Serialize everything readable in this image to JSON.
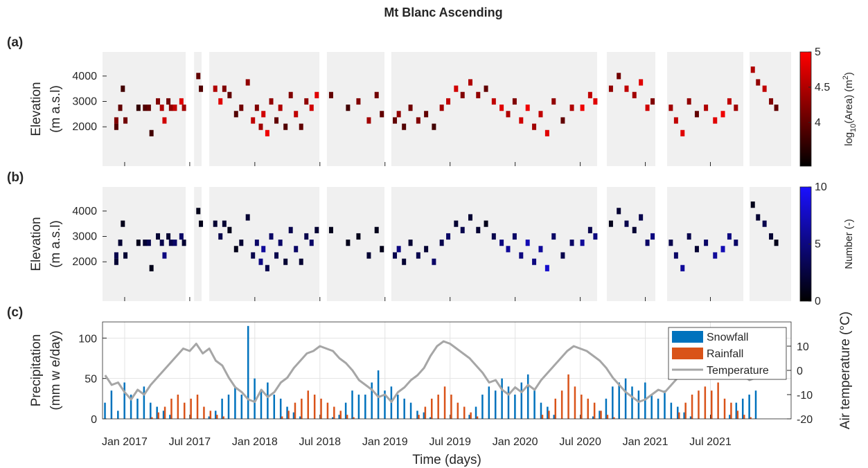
{
  "title": "Mt Blanc Ascending",
  "chart_data": [
    {
      "type": "heatmap",
      "panel_label": "(a)",
      "ylabel": [
        "Elevation",
        "(m a.s.l)"
      ],
      "colorbar_label": {
        "base": "log",
        "sub": "10",
        "mid": "(Area) (m",
        "sup": "2",
        "end": ")"
      },
      "colormap": [
        "#000000",
        "#ff0000"
      ],
      "clim": [
        3.38,
        5
      ],
      "cticks": [
        4,
        4.5,
        5
      ],
      "xlim": [
        2016.83,
        2022.12
      ],
      "ylim": [
        450,
        4950
      ],
      "yticks": [
        2000,
        3000,
        4000
      ],
      "coverage": [
        [
          2016.83,
          2017.469
        ],
        [
          2017.533,
          2017.591
        ],
        [
          2017.65,
          2018.496
        ],
        [
          2018.554,
          2018.996
        ],
        [
          2019.049,
          2020.63
        ],
        [
          2020.704,
          2021.077
        ],
        [
          2021.167,
          2021.753
        ],
        [
          2021.801,
          2022.12
        ]
      ],
      "x": [
        2016.92,
        2016.92,
        2016.95,
        2016.97,
        2016.99,
        2017.09,
        2017.14,
        2017.17,
        2017.19,
        2017.24,
        2017.27,
        2017.29,
        2017.32,
        2017.34,
        2017.37,
        2017.42,
        2017.44,
        2017.55,
        2017.57,
        2017.68,
        2017.72,
        2017.75,
        2017.79,
        2017.84,
        2017.88,
        2017.93,
        2017.97,
        2018.0,
        2018.03,
        2018.05,
        2018.08,
        2018.11,
        2018.15,
        2018.18,
        2018.22,
        2018.26,
        2018.3,
        2018.34,
        2018.38,
        2018.42,
        2018.46,
        2018.57,
        2018.7,
        2018.78,
        2018.86,
        2018.92,
        2018.96,
        2019.06,
        2019.09,
        2019.13,
        2019.18,
        2019.24,
        2019.3,
        2019.36,
        2019.42,
        2019.47,
        2019.53,
        2019.58,
        2019.64,
        2019.7,
        2019.76,
        2019.82,
        2019.88,
        2019.93,
        2019.98,
        2020.03,
        2020.08,
        2020.13,
        2020.18,
        2020.23,
        2020.28,
        2020.35,
        2020.42,
        2020.5,
        2020.56,
        2020.6,
        2020.72,
        2020.78,
        2020.84,
        2020.9,
        2020.95,
        2021.0,
        2021.04,
        2021.18,
        2021.22,
        2021.27,
        2021.32,
        2021.38,
        2021.45,
        2021.52,
        2021.58,
        2021.63,
        2021.68,
        2021.81,
        2021.85,
        2021.9,
        2021.95,
        2021.99
      ],
      "y": [
        2250,
        2000,
        2750,
        3500,
        2250,
        2750,
        2750,
        2750,
        1750,
        3000,
        2750,
        2250,
        3000,
        2750,
        2750,
        3000,
        2750,
        4000,
        3500,
        3500,
        3000,
        3500,
        3250,
        2500,
        2750,
        3750,
        2250,
        2750,
        2000,
        2500,
        1750,
        3000,
        2250,
        2750,
        2000,
        3250,
        2500,
        2000,
        3000,
        2750,
        3250,
        3250,
        2750,
        3000,
        2250,
        3250,
        2500,
        2250,
        2500,
        2000,
        2750,
        2250,
        2500,
        2000,
        2750,
        3000,
        3500,
        3250,
        3750,
        3250,
        3500,
        3000,
        2750,
        2500,
        3000,
        2250,
        2750,
        2000,
        2500,
        1750,
        3000,
        2250,
        2750,
        2750,
        3250,
        3000,
        3500,
        4000,
        3500,
        3250,
        3750,
        2750,
        3000,
        2750,
        2250,
        1750,
        3000,
        2500,
        2750,
        2250,
        2500,
        3000,
        2750,
        4250,
        3750,
        3500,
        3000,
        2750
      ],
      "values": [
        4.2,
        3.9,
        4.0,
        3.8,
        4.1,
        3.7,
        3.9,
        4.0,
        3.8,
        4.2,
        4.5,
        4.7,
        4.1,
        4.3,
        4.6,
        4.8,
        4.4,
        4.0,
        3.9,
        4.5,
        4.8,
        4.2,
        4.0,
        3.9,
        4.1,
        4.3,
        4.6,
        4.2,
        4.4,
        4.7,
        4.9,
        4.3,
        4.0,
        4.5,
        3.9,
        4.2,
        4.6,
        4.0,
        4.3,
        4.7,
        4.8,
        4.0,
        3.8,
        4.2,
        4.4,
        4.1,
        4.0,
        4.0,
        4.3,
        3.9,
        4.1,
        4.2,
        4.0,
        3.8,
        4.4,
        4.6,
        4.7,
        4.2,
        4.5,
        4.3,
        4.0,
        4.6,
        4.8,
        4.5,
        4.2,
        4.7,
        4.9,
        4.4,
        4.6,
        4.8,
        4.3,
        4.0,
        4.5,
        4.9,
        4.6,
        4.8,
        4.3,
        4.1,
        4.6,
        4.4,
        4.8,
        4.7,
        4.2,
        4.4,
        4.6,
        4.8,
        4.3,
        4.0,
        4.5,
        4.8,
        4.9,
        4.6,
        4.4,
        4.5,
        4.3,
        4.6,
        4.2,
        4.0
      ]
    },
    {
      "type": "heatmap",
      "panel_label": "(b)",
      "ylabel": [
        "Elevation",
        "(m a.s.l)"
      ],
      "colorbar_label": {
        "base": "Number (-)"
      },
      "colormap": [
        "#000000",
        "#1a10ff"
      ],
      "clim": [
        0,
        10
      ],
      "cticks": [
        0,
        5,
        10
      ],
      "xlim": [
        2016.83,
        2022.12
      ],
      "ylim": [
        450,
        4950
      ],
      "yticks": [
        2000,
        3000,
        4000
      ],
      "coverage": [
        [
          2016.83,
          2017.469
        ],
        [
          2017.533,
          2017.591
        ],
        [
          2017.65,
          2018.496
        ],
        [
          2018.554,
          2018.996
        ],
        [
          2019.049,
          2020.63
        ],
        [
          2020.704,
          2021.077
        ],
        [
          2021.167,
          2021.753
        ],
        [
          2021.801,
          2022.12
        ]
      ],
      "x": [
        2016.92,
        2016.92,
        2016.95,
        2016.97,
        2016.99,
        2017.09,
        2017.14,
        2017.17,
        2017.19,
        2017.24,
        2017.27,
        2017.29,
        2017.32,
        2017.34,
        2017.37,
        2017.42,
        2017.44,
        2017.55,
        2017.57,
        2017.68,
        2017.72,
        2017.75,
        2017.79,
        2017.84,
        2017.88,
        2017.93,
        2017.97,
        2018.0,
        2018.03,
        2018.05,
        2018.08,
        2018.11,
        2018.15,
        2018.18,
        2018.22,
        2018.26,
        2018.3,
        2018.34,
        2018.38,
        2018.42,
        2018.46,
        2018.57,
        2018.7,
        2018.78,
        2018.86,
        2018.92,
        2018.96,
        2019.06,
        2019.09,
        2019.13,
        2019.18,
        2019.24,
        2019.3,
        2019.36,
        2019.42,
        2019.47,
        2019.53,
        2019.58,
        2019.64,
        2019.7,
        2019.76,
        2019.82,
        2019.88,
        2019.93,
        2019.98,
        2020.03,
        2020.08,
        2020.13,
        2020.18,
        2020.23,
        2020.28,
        2020.35,
        2020.42,
        2020.5,
        2020.56,
        2020.6,
        2020.72,
        2020.78,
        2020.84,
        2020.9,
        2020.95,
        2021.0,
        2021.04,
        2021.18,
        2021.22,
        2021.27,
        2021.32,
        2021.38,
        2021.45,
        2021.52,
        2021.58,
        2021.63,
        2021.68,
        2021.81,
        2021.85,
        2021.9,
        2021.95,
        2021.99
      ],
      "y": [
        2250,
        2000,
        2750,
        3500,
        2250,
        2750,
        2750,
        2750,
        1750,
        3000,
        2750,
        2250,
        3000,
        2750,
        2750,
        3000,
        2750,
        4000,
        3500,
        3500,
        3000,
        3500,
        3250,
        2500,
        2750,
        3750,
        2250,
        2750,
        2000,
        2500,
        1750,
        3000,
        2250,
        2750,
        2000,
        3250,
        2500,
        2000,
        3000,
        2750,
        3250,
        3250,
        2750,
        3000,
        2250,
        3250,
        2500,
        2250,
        2500,
        2000,
        2750,
        2250,
        2500,
        2000,
        2750,
        3000,
        3500,
        3250,
        3750,
        3250,
        3500,
        3000,
        2750,
        2500,
        3000,
        2250,
        2750,
        2000,
        2500,
        1750,
        3000,
        2250,
        2750,
        2750,
        3250,
        3000,
        3500,
        4000,
        3500,
        3250,
        3750,
        2750,
        3000,
        2750,
        2250,
        1750,
        3000,
        2500,
        2750,
        2250,
        2500,
        3000,
        2750,
        4250,
        3750,
        3500,
        3000,
        2750
      ],
      "values": [
        3,
        2,
        2,
        1,
        2,
        1,
        2,
        3,
        1,
        2,
        3,
        5,
        2,
        3,
        4,
        4,
        2,
        1,
        1,
        2,
        3,
        2,
        1,
        1,
        2,
        2,
        3,
        4,
        5,
        6,
        3,
        4,
        3,
        4,
        2,
        3,
        4,
        2,
        3,
        4,
        2,
        1,
        1,
        1,
        2,
        1,
        1,
        3,
        5,
        2,
        2,
        3,
        2,
        4,
        3,
        4,
        2,
        3,
        2,
        2,
        1,
        3,
        5,
        6,
        4,
        5,
        7,
        5,
        6,
        8,
        4,
        3,
        4,
        6,
        3,
        5,
        1,
        2,
        3,
        2,
        3,
        4,
        5,
        3,
        4,
        6,
        3,
        2,
        4,
        6,
        7,
        5,
        4,
        1,
        2,
        3,
        2,
        1
      ]
    },
    {
      "type": "bar",
      "panel_label": "(c)",
      "ylabel": [
        "Precipitation",
        "(mm w e/day)"
      ],
      "y2label": "Air temperature (°C)",
      "xlabel": "Time (days)",
      "xlim": [
        2016.83,
        2022.12
      ],
      "ylim": [
        0,
        120
      ],
      "yticks": [
        0,
        50,
        100
      ],
      "y2lim": [
        -20,
        20
      ],
      "y2ticks": [
        -20,
        -10,
        0,
        10
      ],
      "xticks": [
        {
          "value": 2017.0,
          "label": "Jan 2017"
        },
        {
          "value": 2017.5,
          "label": "Jul 2017"
        },
        {
          "value": 2018.0,
          "label": "Jan 2018"
        },
        {
          "value": 2018.5,
          "label": "Jul 2018"
        },
        {
          "value": 2019.0,
          "label": "Jan 2019"
        },
        {
          "value": 2019.5,
          "label": "Jul 2019"
        },
        {
          "value": 2020.0,
          "label": "Jan 2020"
        },
        {
          "value": 2020.5,
          "label": "Jul 2020"
        },
        {
          "value": 2021.0,
          "label": "Jan 2021"
        },
        {
          "value": 2021.5,
          "label": "Jul 2021"
        }
      ],
      "grid": true,
      "legend": "upper right",
      "x": [
        2016.85,
        2016.9,
        2016.95,
        2017.0,
        2017.05,
        2017.1,
        2017.15,
        2017.2,
        2017.25,
        2017.3,
        2017.35,
        2017.4,
        2017.45,
        2017.5,
        2017.55,
        2017.6,
        2017.65,
        2017.7,
        2017.75,
        2017.8,
        2017.85,
        2017.9,
        2017.95,
        2018.0,
        2018.05,
        2018.1,
        2018.15,
        2018.2,
        2018.25,
        2018.3,
        2018.35,
        2018.4,
        2018.45,
        2018.5,
        2018.55,
        2018.6,
        2018.65,
        2018.7,
        2018.75,
        2018.8,
        2018.85,
        2018.9,
        2018.95,
        2019.0,
        2019.05,
        2019.1,
        2019.15,
        2019.2,
        2019.25,
        2019.3,
        2019.35,
        2019.4,
        2019.45,
        2019.5,
        2019.55,
        2019.6,
        2019.65,
        2019.7,
        2019.75,
        2019.8,
        2019.85,
        2019.9,
        2019.95,
        2020.0,
        2020.05,
        2020.1,
        2020.15,
        2020.2,
        2020.25,
        2020.3,
        2020.35,
        2020.4,
        2020.45,
        2020.5,
        2020.55,
        2020.6,
        2020.65,
        2020.7,
        2020.75,
        2020.8,
        2020.85,
        2020.9,
        2020.95,
        2021.0,
        2021.05,
        2021.1,
        2021.15,
        2021.2,
        2021.25,
        2021.3,
        2021.35,
        2021.4,
        2021.45,
        2021.5,
        2021.55,
        2021.6,
        2021.65,
        2021.7,
        2021.75,
        2021.8,
        2021.85
      ],
      "series": [
        {
          "name": "Snowfall",
          "color": "#0072bd",
          "values": [
            20,
            35,
            10,
            45,
            30,
            25,
            40,
            20,
            15,
            10,
            5,
            0,
            0,
            0,
            0,
            0,
            3,
            10,
            25,
            30,
            40,
            30,
            115,
            50,
            35,
            45,
            30,
            25,
            15,
            8,
            3,
            0,
            0,
            0,
            0,
            2,
            5,
            20,
            35,
            30,
            30,
            45,
            60,
            35,
            40,
            30,
            25,
            20,
            10,
            8,
            2,
            0,
            0,
            0,
            0,
            0,
            5,
            15,
            30,
            40,
            35,
            50,
            40,
            30,
            45,
            55,
            35,
            20,
            15,
            5,
            0,
            0,
            0,
            0,
            0,
            3,
            10,
            25,
            40,
            45,
            50,
            40,
            35,
            45,
            30,
            25,
            35,
            20,
            15,
            8,
            3,
            0,
            0,
            0,
            0,
            0,
            5,
            20,
            25,
            30,
            35
          ]
        },
        {
          "name": "Rainfall",
          "color": "#d95319",
          "values": [
            0,
            0,
            0,
            0,
            0,
            0,
            0,
            2,
            8,
            15,
            25,
            30,
            20,
            25,
            30,
            15,
            10,
            5,
            3,
            0,
            0,
            0,
            0,
            0,
            0,
            0,
            0,
            3,
            10,
            20,
            25,
            35,
            30,
            25,
            20,
            15,
            10,
            5,
            2,
            0,
            0,
            0,
            0,
            0,
            0,
            0,
            0,
            0,
            5,
            15,
            25,
            30,
            40,
            30,
            20,
            15,
            8,
            3,
            0,
            0,
            0,
            0,
            0,
            0,
            0,
            0,
            0,
            5,
            10,
            25,
            35,
            55,
            40,
            30,
            25,
            20,
            10,
            5,
            2,
            0,
            0,
            0,
            0,
            0,
            0,
            0,
            0,
            0,
            8,
            20,
            30,
            35,
            40,
            35,
            45,
            25,
            20,
            10,
            5,
            2,
            0
          ]
        },
        {
          "name": "Temperature",
          "color": "#a6a6a6",
          "type": "line",
          "axis": "y2",
          "values": [
            -2,
            -6,
            -5,
            -9,
            -12,
            -8,
            -10,
            -6,
            -3,
            0,
            3,
            6,
            9,
            8,
            11,
            7,
            9,
            4,
            2,
            -3,
            -7,
            -9,
            -12,
            -13,
            -8,
            -11,
            -9,
            -5,
            -3,
            1,
            4,
            7,
            8,
            10,
            9,
            8,
            5,
            3,
            0,
            -4,
            -6,
            -8,
            -11,
            -10,
            -13,
            -9,
            -7,
            -4,
            -2,
            1,
            6,
            10,
            12,
            11,
            9,
            7,
            5,
            2,
            -1,
            -5,
            -4,
            -8,
            -10,
            -7,
            -9,
            -6,
            -8,
            -4,
            -1,
            2,
            5,
            8,
            10,
            9,
            8,
            6,
            4,
            1,
            -3,
            -6,
            -9,
            -11,
            -13,
            -12,
            -10,
            -8,
            -9,
            -6,
            -3,
            -1,
            3,
            6,
            8,
            7,
            6,
            5,
            3,
            1,
            -2,
            -4,
            -3
          ]
        }
      ]
    }
  ]
}
